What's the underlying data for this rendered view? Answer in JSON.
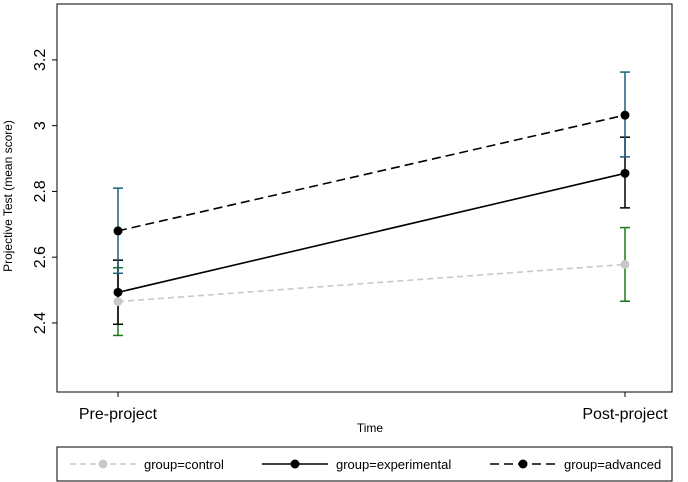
{
  "chart_data": {
    "type": "line",
    "title": "",
    "xlabel": "Time",
    "ylabel": "Projective Test  (mean score)",
    "categories": [
      "Pre-project",
      "Post-project"
    ],
    "yticks": [
      "2.4",
      "2.6",
      "2.8",
      "3",
      "3.2"
    ],
    "ylim": [
      2.19,
      3.37
    ],
    "grid": false,
    "legend_position": "bottom",
    "series": [
      {
        "name": "group=control",
        "values": [
          2.465,
          2.578
        ],
        "ci_low": [
          2.362,
          2.466
        ],
        "ci_high": [
          2.568,
          2.69
        ],
        "line_color": "#c8c8c8",
        "marker_color": "#c8c8c8",
        "ci_color": "#1a7a1a",
        "dash": "dashed"
      },
      {
        "name": "group=experimental",
        "values": [
          2.493,
          2.855
        ],
        "ci_low": [
          2.396,
          2.75
        ],
        "ci_high": [
          2.591,
          2.965
        ],
        "line_color": "#000000",
        "marker_color": "#000000",
        "ci_color": "#000000",
        "dash": "solid"
      },
      {
        "name": "group=advanced",
        "values": [
          2.68,
          3.032
        ],
        "ci_low": [
          2.551,
          2.905
        ],
        "ci_high": [
          2.81,
          3.163
        ],
        "line_color": "#000000",
        "marker_color": "#000000",
        "ci_color": "#1d5f7f",
        "dash": "longdash"
      }
    ]
  }
}
